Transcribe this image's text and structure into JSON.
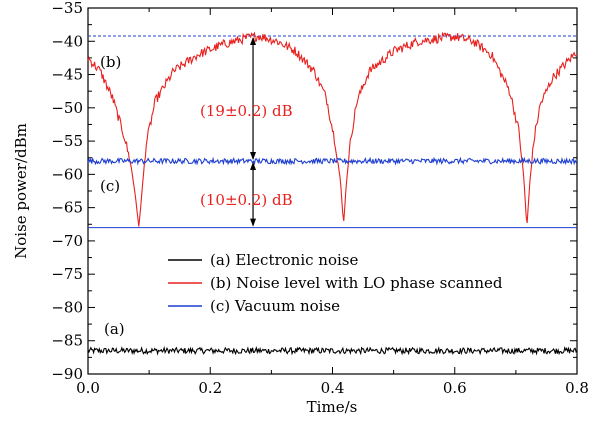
{
  "chart_data": {
    "type": "line",
    "xlabel": "Time/s",
    "ylabel": "Noise power/dBm",
    "xlim": [
      0.0,
      0.8
    ],
    "ylim": [
      -90,
      -35
    ],
    "xticks": [
      0.0,
      0.2,
      0.4,
      0.6,
      0.8
    ],
    "xtick_labels": [
      "0.0",
      "0.2",
      "0.4",
      "0.6",
      "0.8"
    ],
    "yticks": [
      -35,
      -40,
      -45,
      -50,
      -55,
      -60,
      -65,
      -70,
      -75,
      -80,
      -85,
      -90
    ],
    "ytick_labels": [
      "−35",
      "−40",
      "−45",
      "−50",
      "−55",
      "−60",
      "−65",
      "−70",
      "−75",
      "−80",
      "−85",
      "−90"
    ],
    "grid": false,
    "legend_position": "lower-center",
    "series": [
      {
        "name": "(a) Electronic noise",
        "label": "(a)",
        "color": "#000000",
        "x": [
          0.0,
          0.8
        ],
        "y": [
          -86.5,
          -86.5
        ]
      },
      {
        "name": "(b) Noise level with LO phase scanned",
        "label": "(b)",
        "color": "#e8201e",
        "x": [
          0.0,
          0.02,
          0.04,
          0.06,
          0.07,
          0.078,
          0.083,
          0.088,
          0.095,
          0.11,
          0.14,
          0.18,
          0.22,
          0.26,
          0.28,
          0.31,
          0.34,
          0.37,
          0.39,
          0.405,
          0.413,
          0.418,
          0.423,
          0.43,
          0.44,
          0.46,
          0.5,
          0.54,
          0.58,
          0.6,
          0.63,
          0.66,
          0.69,
          0.705,
          0.713,
          0.718,
          0.723,
          0.73,
          0.74,
          0.76,
          0.78,
          0.8
        ],
        "y": [
          -42.5,
          -44.5,
          -48.5,
          -54.5,
          -58.5,
          -63.5,
          -68.0,
          -63.0,
          -55.5,
          -49.0,
          -44.5,
          -42.0,
          -40.5,
          -39.5,
          -39.2,
          -40.0,
          -41.5,
          -44.5,
          -48.5,
          -55.5,
          -61.0,
          -67.5,
          -61.0,
          -54.5,
          -49.0,
          -44.5,
          -41.5,
          -40.0,
          -39.5,
          -39.3,
          -40.0,
          -42.0,
          -47.5,
          -53.5,
          -60.5,
          -68.0,
          -61.0,
          -54.5,
          -49.5,
          -45.5,
          -43.5,
          -41.5
        ]
      },
      {
        "name": "(c) Vacuum noise",
        "label": "(c)",
        "color": "#1f3fd0",
        "x": [
          0.0,
          0.8
        ],
        "y": [
          -58.0,
          -58.0
        ]
      }
    ],
    "reference_lines": [
      {
        "y": -39.2,
        "color": "#1f3fd0",
        "style": "dashed"
      },
      {
        "y": -68.0,
        "color": "#1f3fd0",
        "style": "solid"
      }
    ],
    "annotations": [
      {
        "text": "(19±0.2) dB",
        "color": "#e8201e",
        "x": 0.27,
        "y_from": -39.2,
        "y_to": -58.0
      },
      {
        "text": "(10±0.2) dB",
        "color": "#e8201e",
        "x": 0.27,
        "y_from": -58.0,
        "y_to": -68.0
      }
    ]
  }
}
